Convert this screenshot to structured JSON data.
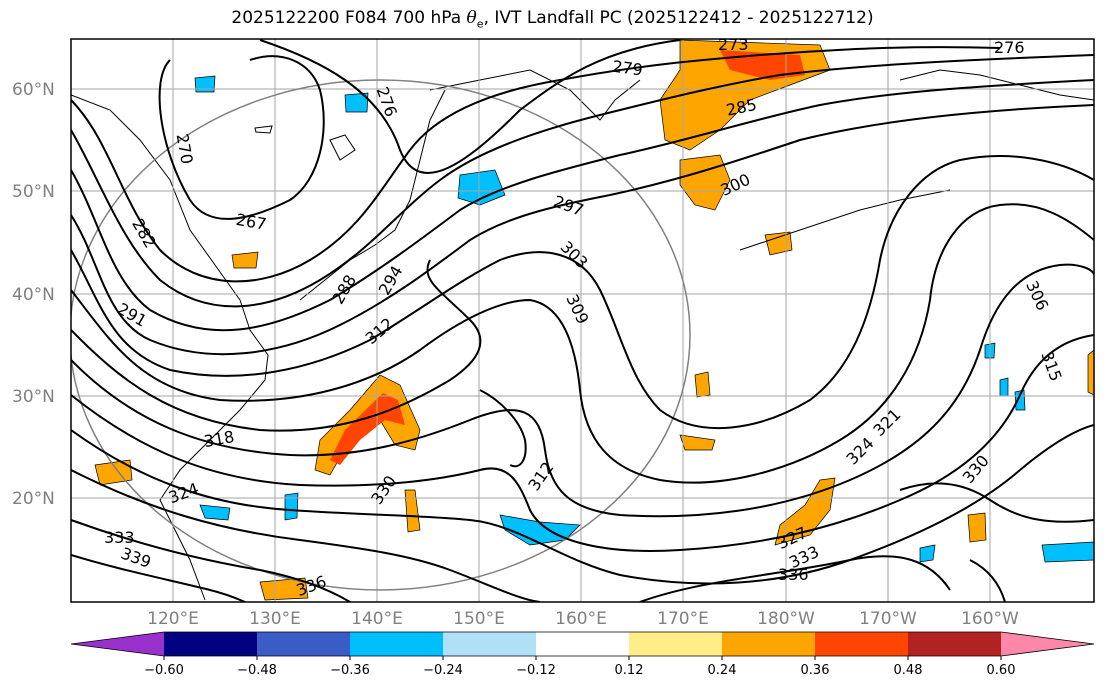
{
  "title": {
    "prefix": "2025122200 F084 700 hPa ",
    "symbol": "θ",
    "symbol_sub": "e",
    "suffix": ", IVT Landfall PC (2025122412 - 2025122712)"
  },
  "lat_labels": [
    "60°N",
    "50°N",
    "40°N",
    "30°N",
    "20°N"
  ],
  "lon_labels": [
    "120°E",
    "130°E",
    "140°E",
    "150°E",
    "160°E",
    "170°E",
    "180°W",
    "170°W",
    "160°W"
  ],
  "contour_labels": [
    "276",
    "279",
    "273",
    "285",
    "276",
    "270",
    "267",
    "282",
    "291",
    "288",
    "294",
    "297",
    "300",
    "303",
    "309",
    "312",
    "318",
    "306",
    "315",
    "321",
    "324",
    "330",
    "312",
    "327",
    "333",
    "336",
    "330",
    "324",
    "333",
    "339",
    "336"
  ],
  "colorbar": {
    "ticks": [
      "−0.60",
      "−0.48",
      "−0.36",
      "−0.24",
      "−0.12",
      "0.12",
      "0.24",
      "0.36",
      "0.48",
      "0.60"
    ],
    "colors": [
      "#9932cc",
      "#000080",
      "#3a5cc7",
      "#00bfff",
      "#b0e0f8",
      "#ffffff",
      "#ffee88",
      "#ffa500",
      "#ff4500",
      "#b22222",
      "#ff88aa"
    ]
  }
}
